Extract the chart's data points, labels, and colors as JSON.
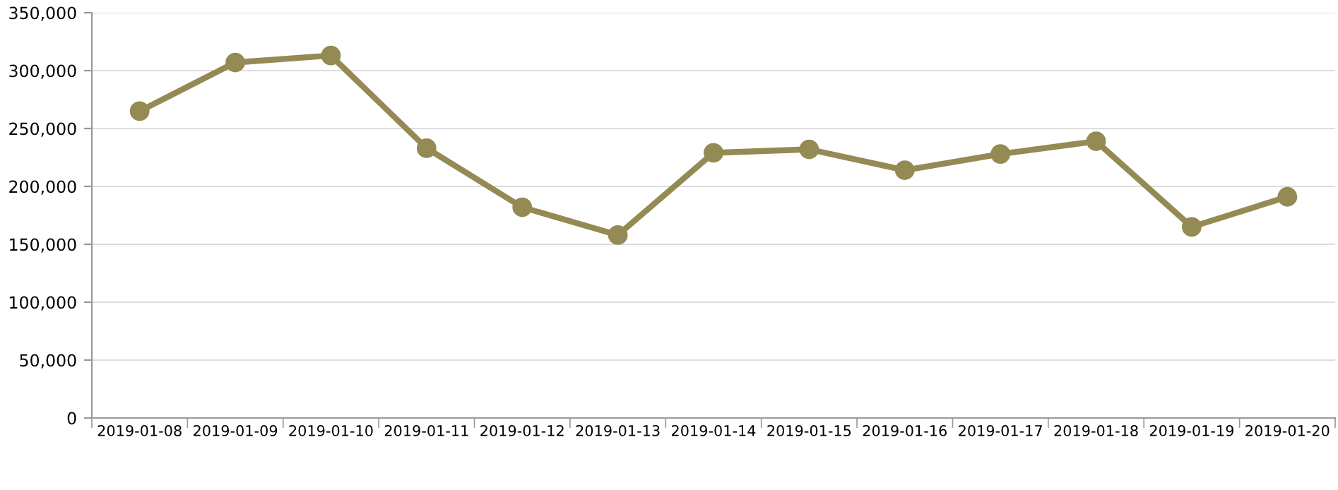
{
  "chart_data": {
    "type": "line",
    "categories": [
      "2019-01-08",
      "2019-01-09",
      "2019-01-10",
      "2019-01-11",
      "2019-01-12",
      "2019-01-13",
      "2019-01-14",
      "2019-01-15",
      "2019-01-16",
      "2019-01-17",
      "2019-01-18",
      "2019-01-19",
      "2019-01-20"
    ],
    "series": [
      {
        "color": "#948a54",
        "values": [
          265000,
          307000,
          313000,
          233000,
          182000,
          158000,
          229000,
          232000,
          214000,
          228000,
          239000,
          165000,
          191000
        ]
      }
    ],
    "ylim": [
      0,
      350000
    ],
    "yticks": [
      0,
      {
        "value": 50000,
        "label": "50,000"
      },
      {
        "value": 100000,
        "label": "100,000"
      },
      {
        "value": 150000,
        "label": "150,000"
      },
      {
        "value": 200000,
        "label": "200,000"
      },
      {
        "value": 250000,
        "label": "250,000"
      },
      {
        "value": 300000,
        "label": "300,000"
      },
      {
        "value": 350000,
        "label": "350,000"
      }
    ],
    "grid": "y",
    "marker": "circle",
    "line_style": "solid"
  }
}
